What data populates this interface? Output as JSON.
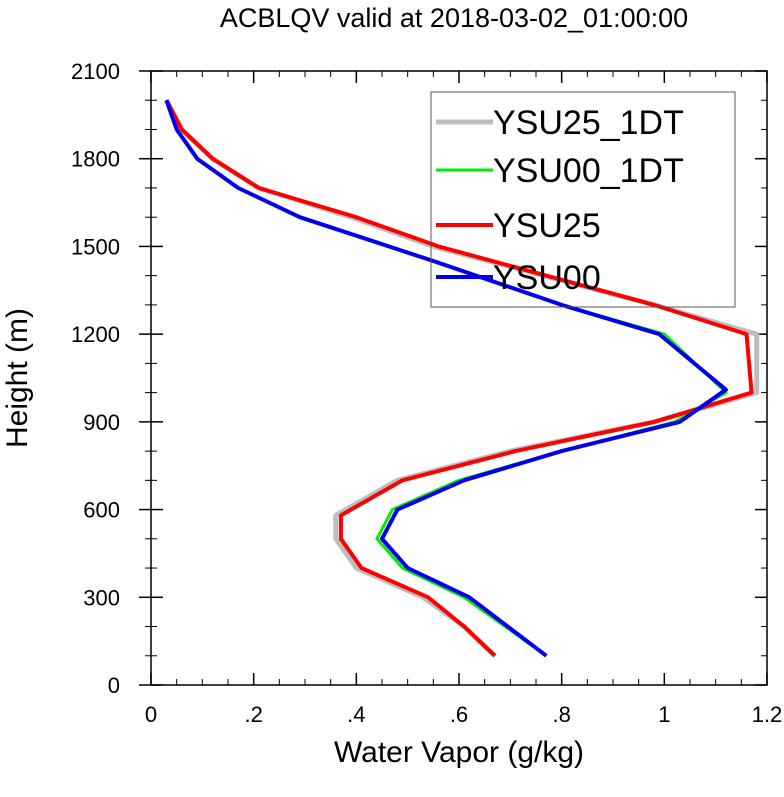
{
  "chart_data": {
    "type": "line",
    "title": "ACBLQV valid at 2018-03-02_01:00:00",
    "xlabel": "Water Vapor (g/kg)",
    "ylabel": "Height (m)",
    "xlim": [
      0,
      1.2
    ],
    "ylim": [
      0,
      2100
    ],
    "xticks": [
      0,
      0.2,
      0.4,
      0.6,
      0.8,
      1.0,
      1.2
    ],
    "xtick_labels": [
      "0",
      ".2",
      ".4",
      ".6",
      ".8",
      "1",
      "1.2"
    ],
    "yticks": [
      0,
      300,
      600,
      900,
      1200,
      1500,
      1800,
      2100
    ],
    "ytick_labels": [
      "0",
      "300",
      "600",
      "900",
      "1200",
      "1500",
      "1800",
      "2100"
    ],
    "grid": false,
    "legend_position": "top-right",
    "series": [
      {
        "name": "YSU25_1DT",
        "color": "#bdbdbd",
        "width": 5,
        "points": [
          [
            0.67,
            100
          ],
          [
            0.61,
            200
          ],
          [
            0.53,
            300
          ],
          [
            0.4,
            400
          ],
          [
            0.36,
            500
          ],
          [
            0.36,
            580
          ],
          [
            0.48,
            700
          ],
          [
            0.7,
            800
          ],
          [
            0.98,
            900
          ],
          [
            1.18,
            1000
          ],
          [
            1.18,
            1200
          ],
          [
            0.98,
            1300
          ],
          [
            0.55,
            1500
          ],
          [
            0.39,
            1600
          ],
          [
            0.21,
            1700
          ],
          [
            0.12,
            1800
          ],
          [
            0.06,
            1900
          ],
          [
            0.03,
            2000
          ]
        ]
      },
      {
        "name": "YSU00_1DT",
        "color": "#00ee00",
        "width": 3,
        "points": [
          [
            0.77,
            100
          ],
          [
            0.61,
            300
          ],
          [
            0.49,
            400
          ],
          [
            0.44,
            500
          ],
          [
            0.47,
            600
          ],
          [
            0.6,
            700
          ],
          [
            0.8,
            800
          ],
          [
            1.02,
            900
          ],
          [
            1.12,
            1000
          ],
          [
            1.0,
            1200
          ],
          [
            0.8,
            1300
          ],
          [
            0.55,
            1450
          ],
          [
            0.29,
            1600
          ],
          [
            0.17,
            1700
          ],
          [
            0.09,
            1800
          ],
          [
            0.05,
            1900
          ],
          [
            0.03,
            2000
          ]
        ]
      },
      {
        "name": "YSU25",
        "color": "#ff0000",
        "width": 4,
        "points": [
          [
            0.67,
            100
          ],
          [
            0.61,
            200
          ],
          [
            0.54,
            300
          ],
          [
            0.41,
            400
          ],
          [
            0.37,
            500
          ],
          [
            0.37,
            580
          ],
          [
            0.49,
            700
          ],
          [
            0.71,
            800
          ],
          [
            0.98,
            900
          ],
          [
            1.17,
            1000
          ],
          [
            1.16,
            1200
          ],
          [
            0.98,
            1300
          ],
          [
            0.56,
            1500
          ],
          [
            0.4,
            1600
          ],
          [
            0.21,
            1700
          ],
          [
            0.12,
            1800
          ],
          [
            0.06,
            1900
          ],
          [
            0.03,
            2000
          ]
        ]
      },
      {
        "name": "YSU00",
        "color": "#0000ee",
        "width": 4,
        "points": [
          [
            0.77,
            100
          ],
          [
            0.62,
            300
          ],
          [
            0.5,
            400
          ],
          [
            0.45,
            500
          ],
          [
            0.48,
            600
          ],
          [
            0.61,
            700
          ],
          [
            0.8,
            800
          ],
          [
            1.03,
            900
          ],
          [
            1.12,
            1010
          ],
          [
            0.99,
            1200
          ],
          [
            0.8,
            1300
          ],
          [
            0.55,
            1450
          ],
          [
            0.29,
            1600
          ],
          [
            0.17,
            1700
          ],
          [
            0.09,
            1800
          ],
          [
            0.05,
            1900
          ],
          [
            0.03,
            2000
          ]
        ]
      }
    ]
  }
}
